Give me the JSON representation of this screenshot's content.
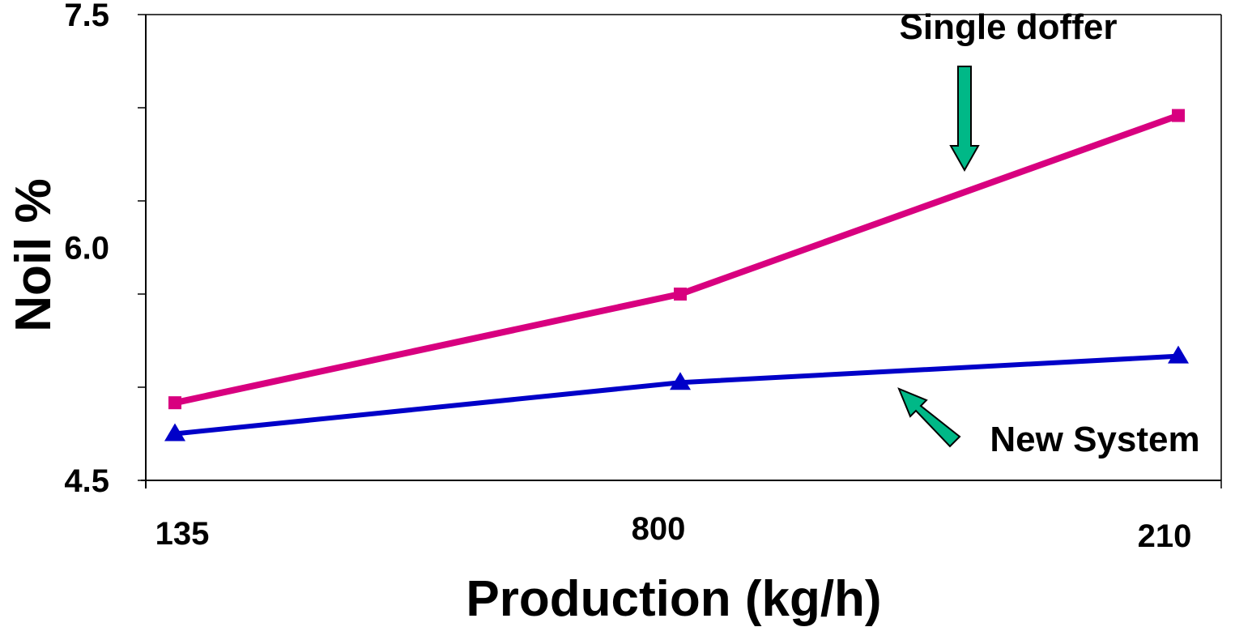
{
  "chart_data": {
    "type": "line",
    "title": "",
    "xlabel": "Production (kg/h)",
    "ylabel": "Noil %",
    "categories": [
      "135",
      "800",
      "210"
    ],
    "ylim": [
      4.5,
      7.5
    ],
    "yticks": [
      "7.5",
      "6.0",
      "4.5"
    ],
    "grid": false,
    "series": [
      {
        "name": "Single doffer",
        "values": [
          5.0,
          5.7,
          6.85
        ],
        "color": "#d8007f",
        "marker": "square"
      },
      {
        "name": "New System",
        "values": [
          4.8,
          5.13,
          5.3
        ],
        "color": "#0000c8",
        "marker": "triangle"
      }
    ],
    "annotations": [
      {
        "text": "Single doffer",
        "arrow_color": "#00b887",
        "arrow_direction": "down",
        "points_to": "Single doffer"
      },
      {
        "text": "New System",
        "arrow_color": "#00b887",
        "arrow_direction": "up-left",
        "points_to": "New System"
      }
    ]
  }
}
